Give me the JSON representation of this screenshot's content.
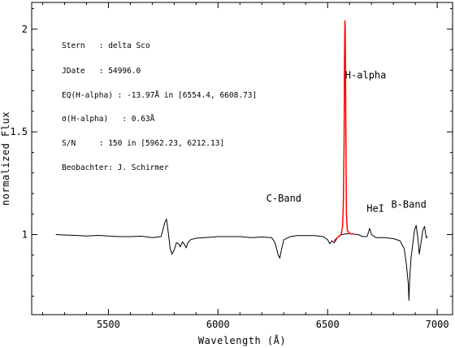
{
  "chart_data": {
    "type": "line",
    "xlabel": "Wavelength (Å)",
    "ylabel": "normalized Flux",
    "xlim": [
      5150,
      7070
    ],
    "ylim": [
      0.61,
      2.13
    ],
    "x_ticks": [
      5500,
      6000,
      6500,
      7000
    ],
    "x_tick_labels": [
      "5500",
      "6000",
      "6500",
      "7000"
    ],
    "y_ticks": [
      1,
      1.5,
      2
    ],
    "y_tick_labels": [
      "1",
      "1.5",
      "2"
    ],
    "grid": false,
    "info_lines": [
      "Stern   : delta Sco",
      "JDate   : 54996.0",
      "EQ(H-alpha) : -13.97Å in [6554.4, 6608.73]",
      "σ(H-alpha)   : 0.63Å",
      "S/N     : 150 in [5962.23, 6212.13]",
      "Beobachter: J. Schirmer"
    ],
    "annotations": [
      {
        "text": "H-alpha",
        "x": 6580,
        "y": 1.76
      },
      {
        "text": "C-Band",
        "x": 6220,
        "y": 1.16
      },
      {
        "text": "HeI",
        "x": 6678,
        "y": 1.11
      },
      {
        "text": "B-Band",
        "x": 6790,
        "y": 1.13
      }
    ],
    "series": [
      {
        "color": "#000000",
        "points": [
          [
            5260,
            1.0
          ],
          [
            5300,
            0.998
          ],
          [
            5350,
            0.996
          ],
          [
            5400,
            0.993
          ],
          [
            5450,
            0.996
          ],
          [
            5500,
            0.993
          ],
          [
            5550,
            0.99
          ],
          [
            5600,
            0.99
          ],
          [
            5650,
            0.992
          ],
          [
            5700,
            0.985
          ],
          [
            5740,
            0.99
          ],
          [
            5758,
            1.06
          ],
          [
            5765,
            1.075
          ],
          [
            5772,
            1.02
          ],
          [
            5782,
            0.93
          ],
          [
            5790,
            0.905
          ],
          [
            5800,
            0.925
          ],
          [
            5810,
            0.96
          ],
          [
            5820,
            0.955
          ],
          [
            5828,
            0.94
          ],
          [
            5838,
            0.965
          ],
          [
            5848,
            0.95
          ],
          [
            5855,
            0.935
          ],
          [
            5862,
            0.96
          ],
          [
            5875,
            0.975
          ],
          [
            5900,
            0.982
          ],
          [
            5950,
            0.986
          ],
          [
            6000,
            0.99
          ],
          [
            6050,
            0.99
          ],
          [
            6100,
            0.99
          ],
          [
            6150,
            0.985
          ],
          [
            6200,
            0.988
          ],
          [
            6245,
            0.985
          ],
          [
            6260,
            0.96
          ],
          [
            6275,
            0.9
          ],
          [
            6282,
            0.885
          ],
          [
            6290,
            0.93
          ],
          [
            6300,
            0.975
          ],
          [
            6330,
            0.99
          ],
          [
            6360,
            0.995
          ],
          [
            6400,
            0.995
          ],
          [
            6440,
            0.995
          ],
          [
            6480,
            0.99
          ],
          [
            6500,
            0.975
          ],
          [
            6510,
            0.955
          ],
          [
            6520,
            0.97
          ],
          [
            6530,
            0.96
          ],
          [
            6545,
            0.985
          ],
          [
            6560,
            0.998
          ],
          [
            6575,
            1.002
          ],
          [
            6600,
            1.005
          ],
          [
            6620,
            1.002
          ],
          [
            6640,
            1.0
          ],
          [
            6660,
            0.99
          ],
          [
            6680,
            0.99
          ],
          [
            6692,
            1.03
          ],
          [
            6700,
            1.0
          ],
          [
            6720,
            0.985
          ],
          [
            6760,
            0.985
          ],
          [
            6800,
            0.98
          ],
          [
            6830,
            0.97
          ],
          [
            6850,
            0.93
          ],
          [
            6860,
            0.85
          ],
          [
            6868,
            0.76
          ],
          [
            6871,
            0.68
          ],
          [
            6874,
            0.77
          ],
          [
            6880,
            0.88
          ],
          [
            6888,
            0.95
          ],
          [
            6896,
            1.02
          ],
          [
            6904,
            1.045
          ],
          [
            6912,
            0.98
          ],
          [
            6918,
            0.905
          ],
          [
            6926,
            0.96
          ],
          [
            6934,
            1.02
          ],
          [
            6942,
            1.04
          ],
          [
            6950,
            0.985
          ],
          [
            6957,
            0.99
          ]
        ]
      },
      {
        "color": "#ff0000",
        "points": [
          [
            6530,
            0.97
          ],
          [
            6550,
            0.99
          ],
          [
            6562,
            1.0
          ],
          [
            6568,
            1.04
          ],
          [
            6572,
            1.15
          ],
          [
            6575,
            1.45
          ],
          [
            6577,
            1.85
          ],
          [
            6579,
            2.04
          ],
          [
            6580,
            2.02
          ],
          [
            6582,
            1.75
          ],
          [
            6584,
            1.35
          ],
          [
            6586,
            1.1
          ],
          [
            6590,
            1.02
          ],
          [
            6600,
            1.005
          ],
          [
            6620,
            1.002
          ]
        ]
      }
    ]
  }
}
